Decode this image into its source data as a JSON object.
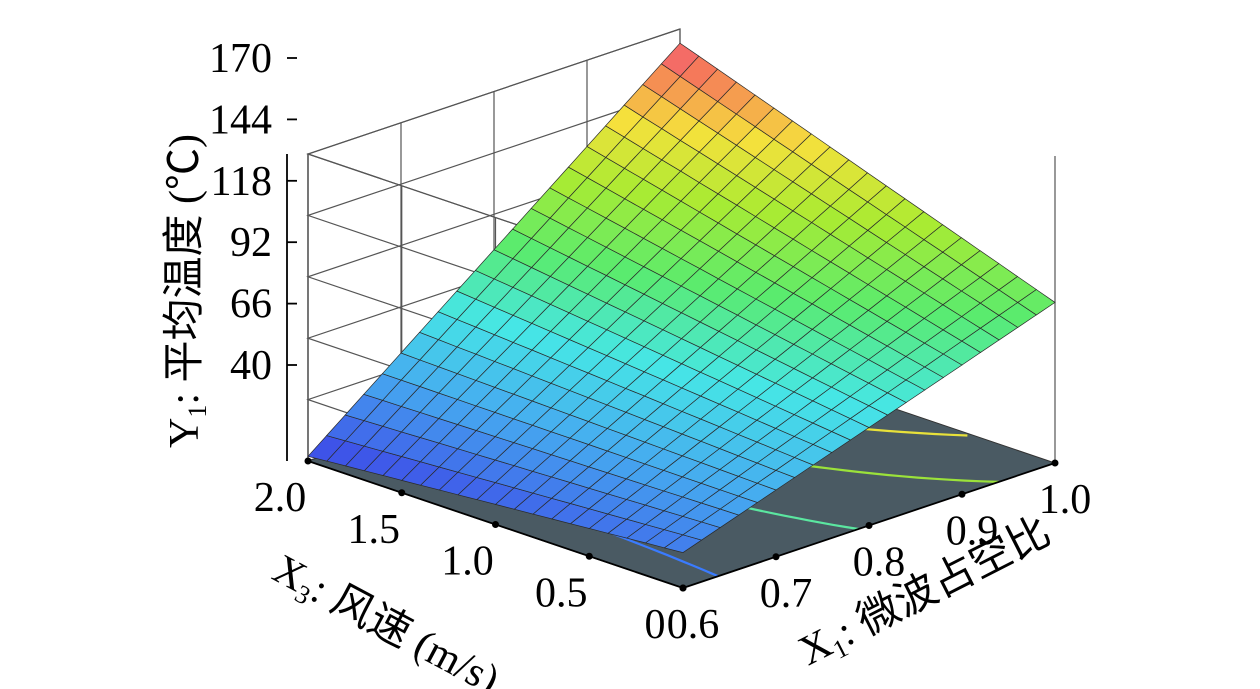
{
  "chart_data": {
    "type": "surface3d",
    "title": "",
    "xlabel": {
      "main": "X",
      "sub": "1",
      "text": ": 微波占空比"
    },
    "ylabel": {
      "main": "X",
      "sub": "3",
      "text": ": 风速 (m/s)"
    },
    "zlabel": {
      "main": "Y",
      "sub": "1",
      "text": ": 平均温度 (℃)"
    },
    "x_ticks": [
      "0.6",
      "0.7",
      "0.8",
      "0.9",
      "1.0"
    ],
    "y_ticks": [
      "0",
      "0.5",
      "1.0",
      "1.5",
      "2.0"
    ],
    "z_ticks": [
      "40",
      "66",
      "92",
      "118",
      "144",
      "170"
    ],
    "xlim": [
      0.6,
      1.0
    ],
    "ylim": [
      0,
      2.0
    ],
    "zlim": [
      40,
      170
    ],
    "grid": true,
    "corners": [
      {
        "x1": 0.6,
        "x3": 0.0,
        "y1": 55
      },
      {
        "x1": 1.0,
        "x3": 0.0,
        "y1": 108
      },
      {
        "x1": 0.6,
        "x3": 2.0,
        "y1": 42
      },
      {
        "x1": 1.0,
        "x3": 2.0,
        "y1": 164
      }
    ],
    "floor_contours": [
      {
        "color": "#3a7bff"
      },
      {
        "color": "#5be6a0"
      },
      {
        "color": "#9be23a"
      },
      {
        "color": "#e8e13a"
      },
      {
        "color": "#d94a2a"
      }
    ],
    "floor_color": "#4a5a63"
  }
}
